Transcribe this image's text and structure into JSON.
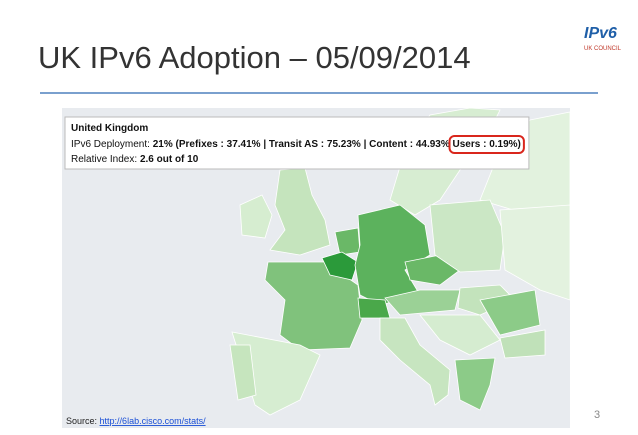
{
  "header": {
    "title": "UK IPv6 Adoption – 05/09/2014",
    "logo": {
      "mark": "IPv6",
      "caption": "UK COUNCIL"
    }
  },
  "tooltip": {
    "country": "United Kingdom",
    "deployment_label": "IPv6 Deployment:",
    "deployment_value": "21% (Prefixes : 37.41% | Transit AS : 75.23% | Content : 44.93%",
    "users": "Users : 0.19%)",
    "index_label": "Relative Index:",
    "index_value": "2.6 out of 10"
  },
  "footer": {
    "source_label": "Source:",
    "source_url": "http://6lab.cisco.com/stats/",
    "page_number": "3"
  }
}
